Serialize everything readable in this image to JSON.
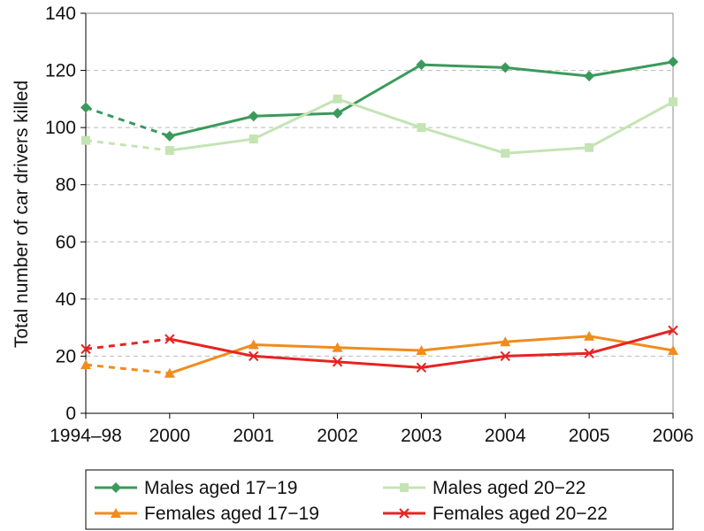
{
  "chart_data": {
    "type": "line",
    "ylabel": "Total number of car drivers killed",
    "xlabel": "",
    "categories": [
      "1994–98",
      "2000",
      "2001",
      "2002",
      "2003",
      "2004",
      "2005",
      "2006"
    ],
    "ylim": [
      0,
      140
    ],
    "yticks": [
      0,
      20,
      40,
      60,
      80,
      100,
      120,
      140
    ],
    "grid": "horizontal dashed",
    "legend_position": "bottom",
    "dashed_segment": "1994–98 to 2000",
    "series": [
      {
        "name": "Males aged 17−19",
        "color": "#3a9a5b",
        "marker": "diamond",
        "values": [
          107,
          97,
          104,
          105,
          122,
          121,
          118,
          123
        ]
      },
      {
        "name": "Males aged 20−22",
        "color": "#c4e4b4",
        "marker": "square",
        "values": [
          95.5,
          92,
          96,
          110,
          100,
          91,
          93,
          109
        ]
      },
      {
        "name": "Females aged 17−19",
        "color": "#f08c1e",
        "marker": "triangle",
        "values": [
          17,
          14,
          24,
          23,
          22,
          25,
          27,
          22
        ]
      },
      {
        "name": "Females aged 20−22",
        "color": "#e52423",
        "marker": "x",
        "values": [
          22.5,
          26,
          20,
          18,
          16,
          20,
          21,
          29
        ]
      }
    ]
  }
}
